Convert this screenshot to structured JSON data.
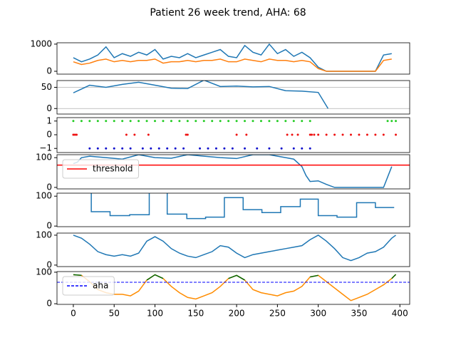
{
  "title": "Patient 26 week trend, AHA: 68",
  "chart_data": [
    {
      "type": "line",
      "xlim": [
        -20,
        412
      ],
      "ylim": [
        -105,
        1050
      ],
      "yticks": [
        0,
        1000
      ],
      "grid": false,
      "x": [
        0,
        10,
        20,
        30,
        40,
        50,
        60,
        70,
        80,
        90,
        100,
        110,
        120,
        130,
        140,
        150,
        160,
        170,
        180,
        190,
        200,
        210,
        220,
        230,
        240,
        250,
        260,
        270,
        280,
        290,
        300,
        310,
        320,
        330,
        340,
        350,
        360,
        370,
        380,
        390
      ],
      "series": [
        {
          "color": "#1f77b4",
          "values": [
            500,
            350,
            450,
            600,
            900,
            500,
            650,
            550,
            700,
            600,
            800,
            450,
            550,
            500,
            650,
            500,
            600,
            700,
            800,
            550,
            500,
            950,
            700,
            600,
            1000,
            650,
            800,
            550,
            700,
            500,
            150,
            0,
            0,
            0,
            0,
            0,
            0,
            0,
            600,
            650
          ]
        },
        {
          "color": "#ff7f0e",
          "values": [
            350,
            250,
            300,
            400,
            450,
            350,
            400,
            350,
            400,
            400,
            450,
            300,
            350,
            350,
            400,
            350,
            400,
            400,
            450,
            350,
            350,
            450,
            400,
            350,
            450,
            400,
            400,
            350,
            400,
            350,
            100,
            0,
            0,
            0,
            0,
            0,
            0,
            0,
            400,
            450
          ]
        }
      ]
    },
    {
      "type": "line",
      "xlim": [
        -20,
        412
      ],
      "ylim": [
        -13,
        66
      ],
      "yticks": [
        0,
        50
      ],
      "grid": true,
      "x": [
        0,
        20,
        40,
        60,
        80,
        100,
        120,
        140,
        160,
        180,
        200,
        220,
        240,
        260,
        280,
        300,
        312
      ],
      "series": [
        {
          "color": "#1f77b4",
          "values": [
            37,
            55,
            50,
            57,
            62,
            55,
            48,
            47,
            67,
            52,
            53,
            51,
            52,
            42,
            41,
            38,
            0
          ]
        }
      ]
    },
    {
      "type": "scatter",
      "xlim": [
        -20,
        412
      ],
      "ylim": [
        -1.3,
        1.25
      ],
      "yticks": [
        {
          "value": -1,
          "label": "−1"
        },
        0,
        1
      ],
      "grid": false,
      "series": [
        {
          "color": "#22cc22",
          "x": [
            0,
            10,
            20,
            30,
            40,
            50,
            60,
            70,
            80,
            90,
            100,
            110,
            120,
            130,
            140,
            150,
            160,
            170,
            180,
            190,
            200,
            210,
            220,
            230,
            240,
            250,
            260,
            270,
            280,
            290,
            385,
            390,
            395
          ],
          "values": [
            1,
            1,
            1,
            1,
            1,
            1,
            1,
            1,
            1,
            1,
            1,
            1,
            1,
            1,
            1,
            1,
            1,
            1,
            1,
            1,
            1,
            1,
            1,
            1,
            1,
            1,
            1,
            1,
            1,
            1,
            1,
            1,
            1
          ]
        },
        {
          "color": "#ee1111",
          "x": [
            0,
            2,
            4,
            65,
            75,
            92,
            138,
            140,
            200,
            212,
            262,
            268,
            275,
            290,
            292,
            295,
            300,
            310,
            320,
            330,
            340,
            350,
            360,
            370,
            380,
            395
          ],
          "values": [
            0,
            0,
            0,
            0,
            0,
            0,
            0,
            0,
            0,
            0,
            0,
            0,
            0,
            0,
            0,
            0,
            0,
            0,
            0,
            0,
            0,
            0,
            0,
            0,
            0,
            0
          ]
        },
        {
          "color": "#1111cc",
          "x": [
            20,
            30,
            40,
            50,
            60,
            70,
            85,
            95,
            105,
            115,
            125,
            135,
            155,
            165,
            175,
            185,
            195,
            210,
            225,
            240,
            255,
            270,
            280,
            290
          ],
          "values": [
            -1,
            -1,
            -1,
            -1,
            -1,
            -1,
            -1,
            -1,
            -1,
            -1,
            -1,
            -1,
            -1,
            -1,
            -1,
            -1,
            -1,
            -1,
            -1,
            -1,
            -1,
            -1,
            -1,
            -1
          ]
        }
      ]
    },
    {
      "type": "line",
      "xlim": [
        -20,
        412
      ],
      "ylim": [
        -5,
        110
      ],
      "yticks": [
        0,
        100
      ],
      "grid": false,
      "legend": "upper left",
      "x": [
        0,
        5,
        10,
        20,
        40,
        60,
        80,
        100,
        120,
        140,
        160,
        180,
        200,
        220,
        240,
        260,
        270,
        280,
        285,
        290,
        300,
        310,
        320,
        340,
        360,
        380,
        390
      ],
      "series": [
        {
          "color": "#1f77b4",
          "values": [
            80,
            85,
            100,
            105,
            100,
            95,
            110,
            100,
            98,
            110,
            105,
            100,
            97,
            110,
            110,
            100,
            95,
            70,
            40,
            20,
            22,
            10,
            0,
            0,
            0,
            0,
            70
          ]
        }
      ],
      "hlines": [
        {
          "name": "threshold",
          "value": 75,
          "color": "red",
          "style": "solid"
        }
      ]
    },
    {
      "type": "step",
      "xlim": [
        -20,
        412
      ],
      "ylim": [
        -2,
        110
      ],
      "yticks": [
        0,
        100
      ],
      "grid": false,
      "x": [
        0,
        22,
        45,
        69,
        93,
        115,
        139,
        162,
        185,
        208,
        231,
        254,
        278,
        300,
        323,
        347,
        370,
        393
      ],
      "series": [
        {
          "color": "#1f77b4",
          "values": [
            120,
            48,
            35,
            38,
            120,
            40,
            25,
            30,
            95,
            55,
            45,
            65,
            90,
            35,
            30,
            78,
            62,
            62
          ]
        }
      ]
    },
    {
      "type": "line",
      "xlim": [
        -20,
        412
      ],
      "ylim": [
        -5,
        107
      ],
      "yticks": [
        0,
        100
      ],
      "grid": false,
      "x": [
        0,
        10,
        20,
        30,
        40,
        50,
        60,
        70,
        80,
        90,
        100,
        110,
        120,
        130,
        140,
        150,
        160,
        170,
        180,
        190,
        200,
        210,
        220,
        230,
        240,
        250,
        260,
        270,
        280,
        290,
        300,
        310,
        320,
        330,
        340,
        350,
        360,
        370,
        380,
        390,
        395
      ],
      "series": [
        {
          "color": "#1f77b4",
          "values": [
            100,
            90,
            70,
            45,
            35,
            30,
            35,
            30,
            40,
            80,
            95,
            80,
            55,
            40,
            30,
            25,
            35,
            45,
            65,
            60,
            40,
            25,
            35,
            40,
            45,
            50,
            55,
            60,
            65,
            85,
            100,
            80,
            55,
            25,
            15,
            25,
            40,
            45,
            60,
            90,
            100
          ]
        }
      ]
    },
    {
      "type": "line",
      "xlim": [
        -20,
        412
      ],
      "ylim": [
        -2,
        102
      ],
      "yticks": [
        0,
        100
      ],
      "xticks": [
        0,
        50,
        100,
        150,
        200,
        250,
        300,
        350,
        400
      ],
      "grid": false,
      "legend": "upper left",
      "x": [
        0,
        10,
        20,
        30,
        40,
        50,
        60,
        70,
        80,
        90,
        100,
        110,
        120,
        130,
        140,
        150,
        160,
        170,
        180,
        190,
        200,
        210,
        220,
        230,
        240,
        250,
        260,
        270,
        280,
        290,
        300,
        310,
        320,
        330,
        340,
        350,
        360,
        370,
        380,
        390,
        395
      ],
      "series": [
        {
          "color": "#ff8c00",
          "values": [
            92,
            90,
            70,
            45,
            35,
            30,
            30,
            25,
            40,
            75,
            92,
            80,
            55,
            35,
            20,
            15,
            25,
            35,
            55,
            80,
            90,
            75,
            45,
            35,
            30,
            25,
            35,
            40,
            55,
            85,
            90,
            70,
            50,
            30,
            10,
            20,
            30,
            45,
            60,
            80,
            93
          ]
        },
        {
          "color": "#006400",
          "values": [
            92,
            90,
            null,
            null,
            null,
            null,
            null,
            null,
            null,
            75,
            92,
            80,
            null,
            null,
            null,
            null,
            null,
            null,
            null,
            80,
            90,
            75,
            null,
            null,
            null,
            null,
            null,
            null,
            null,
            85,
            90,
            null,
            null,
            null,
            null,
            null,
            null,
            null,
            null,
            80,
            93
          ]
        }
      ],
      "hlines": [
        {
          "name": "aha",
          "value": 68,
          "color": "blue",
          "style": "dashed"
        }
      ]
    }
  ]
}
